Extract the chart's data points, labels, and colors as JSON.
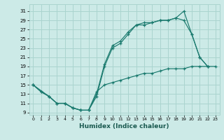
{
  "xlabel": "Humidex (Indice chaleur)",
  "background_color": "#cceae7",
  "line_color": "#1a7a6e",
  "grid_color": "#aad4cf",
  "xlim": [
    -0.5,
    23.5
  ],
  "ylim": [
    8.5,
    32.5
  ],
  "yticks": [
    9,
    11,
    13,
    15,
    17,
    19,
    21,
    23,
    25,
    27,
    29,
    31
  ],
  "xticks": [
    0,
    1,
    2,
    3,
    4,
    5,
    6,
    7,
    8,
    9,
    10,
    11,
    12,
    13,
    14,
    15,
    16,
    17,
    18,
    19,
    20,
    21,
    22,
    23
  ],
  "line1_x": [
    0,
    1,
    2,
    3,
    4,
    5,
    6,
    7,
    8,
    9,
    10,
    11,
    12,
    13,
    14,
    15,
    16,
    17,
    18,
    19,
    20,
    21,
    22
  ],
  "line1_y": [
    15,
    13.5,
    12.5,
    11,
    11,
    10,
    9.5,
    9.5,
    12.5,
    19,
    23,
    24,
    26,
    28,
    28,
    28.5,
    29,
    29,
    29.5,
    31,
    26,
    21,
    19
  ],
  "line2_x": [
    0,
    1,
    2,
    3,
    4,
    5,
    6,
    7,
    8,
    9,
    10,
    11,
    12,
    13,
    14,
    15,
    16,
    17,
    18,
    19,
    20,
    21,
    22
  ],
  "line2_y": [
    15,
    13.5,
    12.5,
    11,
    11,
    10,
    9.5,
    9.5,
    13,
    19.5,
    23.5,
    24.5,
    26.5,
    28,
    28.5,
    28.5,
    29,
    29,
    29.5,
    29,
    26,
    21,
    19
  ],
  "line3_x": [
    0,
    2,
    3,
    4,
    5,
    6,
    7,
    8,
    9,
    10,
    11,
    12,
    13,
    14,
    15,
    16,
    17,
    18,
    19,
    20,
    21,
    22,
    23
  ],
  "line3_y": [
    15,
    12.5,
    11,
    11,
    10,
    9.5,
    9.5,
    13.5,
    15,
    15.5,
    16,
    16.5,
    17,
    17.5,
    17.5,
    18,
    18.5,
    18.5,
    18.5,
    19,
    19,
    19,
    19
  ]
}
